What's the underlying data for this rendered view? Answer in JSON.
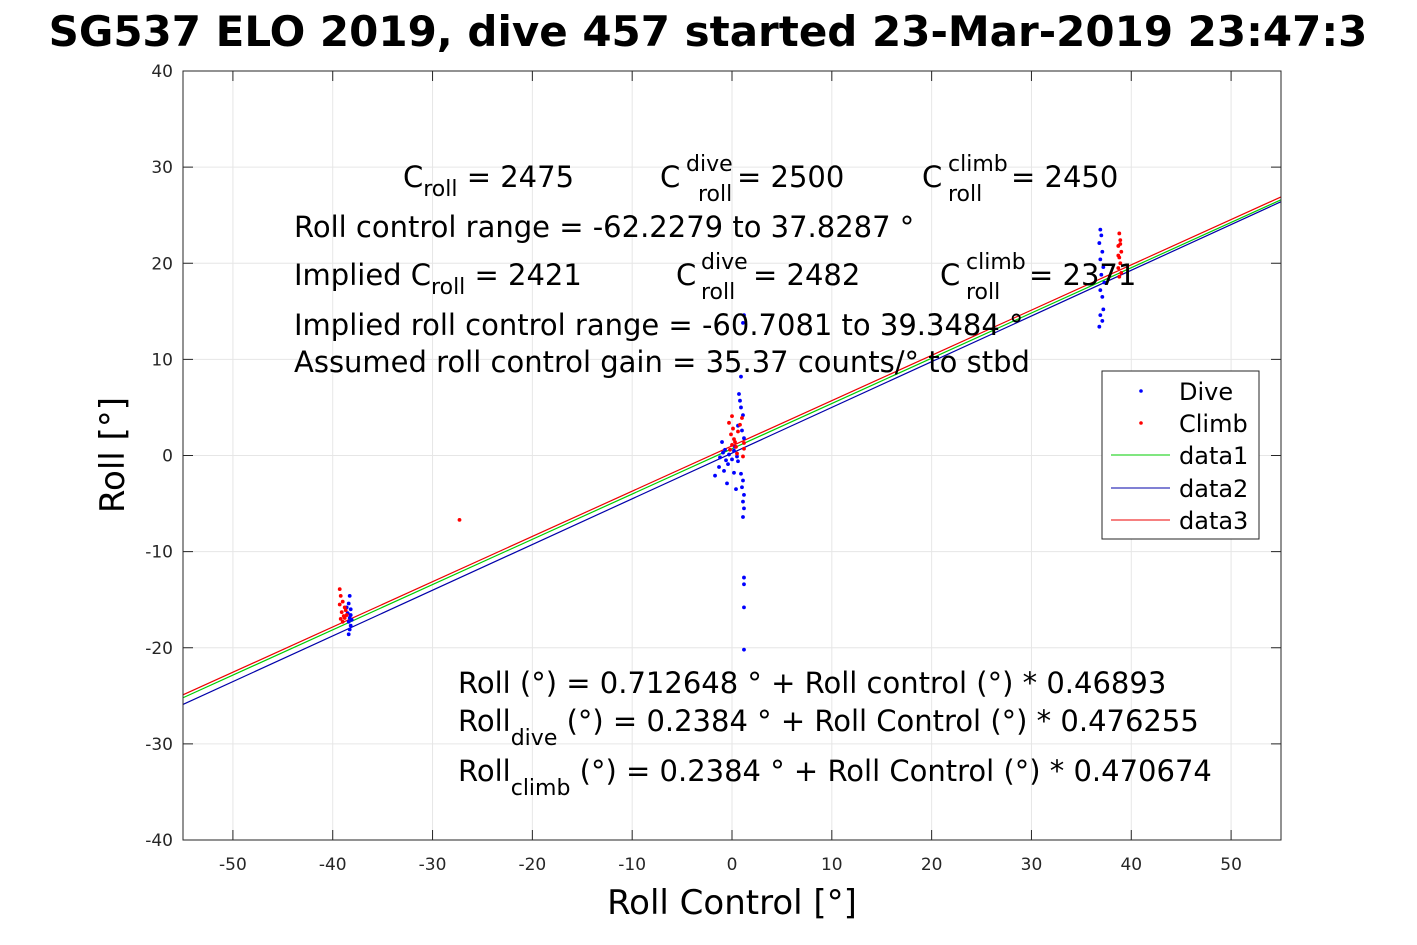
{
  "chart_data": {
    "type": "scatter",
    "title": "SG537 ELO 2019, dive 457 started 23-Mar-2019 23:47:3",
    "xlabel": "Roll Control [°]",
    "ylabel": "Roll [°]",
    "xlim": [
      -55,
      55
    ],
    "ylim": [
      -40,
      40
    ],
    "xticks": [
      -50,
      -40,
      -30,
      -20,
      -10,
      0,
      10,
      20,
      30,
      40,
      50
    ],
    "yticks": [
      -40,
      -30,
      -20,
      -10,
      0,
      10,
      20,
      30,
      40
    ],
    "grid": true,
    "legend_position": "right",
    "series": [
      {
        "name": "Dive",
        "kind": "points",
        "color": "#0000ff",
        "points": [
          [
            -38.3,
            -14.6
          ],
          [
            -38.4,
            -15.4
          ],
          [
            -38.2,
            -16.0
          ],
          [
            -38.5,
            -16.4
          ],
          [
            -38.3,
            -16.9
          ],
          [
            -38.4,
            -17.3
          ],
          [
            -38.2,
            -17.7
          ],
          [
            -38.3,
            -18.1
          ],
          [
            -38.4,
            -18.6
          ],
          [
            -38.2,
            -16.6
          ],
          [
            -38.6,
            -15.8
          ],
          [
            -38.1,
            -17.1
          ],
          [
            -1.2,
            -0.2
          ],
          [
            -0.9,
            0.3
          ],
          [
            -0.6,
            -0.5
          ],
          [
            -0.3,
            0.1
          ],
          [
            0.0,
            -0.4
          ],
          [
            0.2,
            0.5
          ],
          [
            0.5,
            -0.1
          ],
          [
            -0.4,
            -0.9
          ],
          [
            0.3,
            0.9
          ],
          [
            -0.7,
            0.6
          ],
          [
            0.6,
            -0.6
          ],
          [
            -1.0,
            1.4
          ],
          [
            -0.8,
            -1.6
          ],
          [
            1.2,
            14.6
          ],
          [
            1.1,
            13.8
          ],
          [
            0.9,
            8.2
          ],
          [
            0.7,
            6.4
          ],
          [
            0.8,
            5.7
          ],
          [
            0.9,
            5.0
          ],
          [
            1.1,
            4.2
          ],
          [
            0.6,
            3.1
          ],
          [
            1.0,
            2.6
          ],
          [
            1.2,
            1.8
          ],
          [
            0.9,
            -1.9
          ],
          [
            1.1,
            -2.6
          ],
          [
            1.0,
            -3.3
          ],
          [
            1.2,
            -4.1
          ],
          [
            1.1,
            -4.8
          ],
          [
            1.2,
            -5.5
          ],
          [
            1.1,
            -6.4
          ],
          [
            1.2,
            -12.7
          ],
          [
            1.2,
            -13.4
          ],
          [
            1.2,
            -15.8
          ],
          [
            1.2,
            -20.2
          ],
          [
            -1.7,
            -2.1
          ],
          [
            -1.3,
            -1.2
          ],
          [
            -0.5,
            -2.9
          ],
          [
            0.4,
            -3.5
          ],
          [
            0.2,
            -1.8
          ],
          [
            36.9,
            23.5
          ],
          [
            37.0,
            22.9
          ],
          [
            36.8,
            22.1
          ],
          [
            37.1,
            21.2
          ],
          [
            36.9,
            20.4
          ],
          [
            37.2,
            19.6
          ],
          [
            37.0,
            18.8
          ],
          [
            37.3,
            18.0
          ],
          [
            36.9,
            17.2
          ],
          [
            37.1,
            16.5
          ],
          [
            37.2,
            15.2
          ],
          [
            36.9,
            14.6
          ],
          [
            37.1,
            14.0
          ],
          [
            36.8,
            13.4
          ]
        ]
      },
      {
        "name": "Climb",
        "kind": "points",
        "color": "#ff0000",
        "points": [
          [
            -39.3,
            -13.9
          ],
          [
            -39.2,
            -14.6
          ],
          [
            -39.0,
            -15.2
          ],
          [
            -38.8,
            -15.8
          ],
          [
            -39.1,
            -16.3
          ],
          [
            -38.9,
            -16.7
          ],
          [
            -39.2,
            -17.0
          ],
          [
            -38.7,
            -16.1
          ],
          [
            -39.0,
            -17.3
          ],
          [
            -38.8,
            -16.9
          ],
          [
            -39.3,
            -15.5
          ],
          [
            -38.6,
            -16.6
          ],
          [
            -27.3,
            -6.7
          ],
          [
            -0.2,
            0.6
          ],
          [
            0.0,
            1.1
          ],
          [
            0.2,
            1.7
          ],
          [
            -0.1,
            2.2
          ],
          [
            0.1,
            2.8
          ],
          [
            -0.3,
            3.4
          ],
          [
            0.0,
            4.1
          ],
          [
            0.3,
            1.4
          ],
          [
            0.4,
            0.9
          ],
          [
            0.6,
            2.5
          ],
          [
            0.8,
            3.2
          ],
          [
            1.0,
            3.9
          ],
          [
            1.2,
            0.7
          ],
          [
            1.2,
            1.3
          ],
          [
            1.1,
            -0.1
          ],
          [
            0.5,
            0.2
          ],
          [
            38.8,
            23.1
          ],
          [
            38.9,
            22.4
          ],
          [
            38.7,
            21.8
          ],
          [
            39.0,
            21.2
          ],
          [
            38.8,
            20.6
          ],
          [
            38.9,
            20.0
          ],
          [
            38.7,
            19.5
          ],
          [
            39.0,
            19.0
          ],
          [
            38.8,
            18.6
          ],
          [
            38.9,
            22.0
          ],
          [
            38.7,
            20.8
          ]
        ]
      },
      {
        "name": "data1",
        "kind": "line",
        "color": "#00cc00",
        "x": [
          -55,
          55
        ],
        "y": [
          -25.2,
          26.6
        ]
      },
      {
        "name": "data2",
        "kind": "line",
        "color": "#0000aa",
        "x": [
          -55,
          55
        ],
        "y": [
          -25.9,
          26.4
        ]
      },
      {
        "name": "data3",
        "kind": "line",
        "color": "#ee0000",
        "x": [
          -55,
          55
        ],
        "y": [
          -24.9,
          26.9
        ]
      }
    ],
    "annotations": {
      "row1": [
        {
          "base": "C",
          "sub": "roll",
          "sup": "",
          "value": " = 2475"
        },
        {
          "base": "C",
          "sub": "roll",
          "sup": "dive",
          "value": " = 2500"
        },
        {
          "base": "C",
          "sub": "roll",
          "sup": "climb",
          "value": " = 2450"
        }
      ],
      "range_line": "Roll control range = -62.2279 to 37.8287 °",
      "implied_row": [
        {
          "base": "Implied C",
          "sub": "roll",
          "sup": "",
          "value": " = 2421"
        },
        {
          "base": "C",
          "sub": "roll",
          "sup": "dive",
          "value": " = 2482"
        },
        {
          "base": "C",
          "sub": "roll",
          "sup": "climb",
          "value": " = 2371"
        }
      ],
      "implied_range_line": "Implied roll control range = -60.7081 to 39.3484 °",
      "gain_line": "Assumed roll control gain = 35.37 counts/° to stbd",
      "fit_lines": [
        {
          "base": "Roll",
          "sub": "",
          "rest": " (°) = 0.712648 ° + Roll control (°) * 0.46893"
        },
        {
          "base": "Roll",
          "sub": "dive",
          "rest": " (°) = 0.2384 ° + Roll Control (°) * 0.476255"
        },
        {
          "base": "Roll",
          "sub": "climb",
          "rest": " (°) = 0.2384 ° + Roll Control (°) * 0.470674"
        }
      ]
    }
  }
}
